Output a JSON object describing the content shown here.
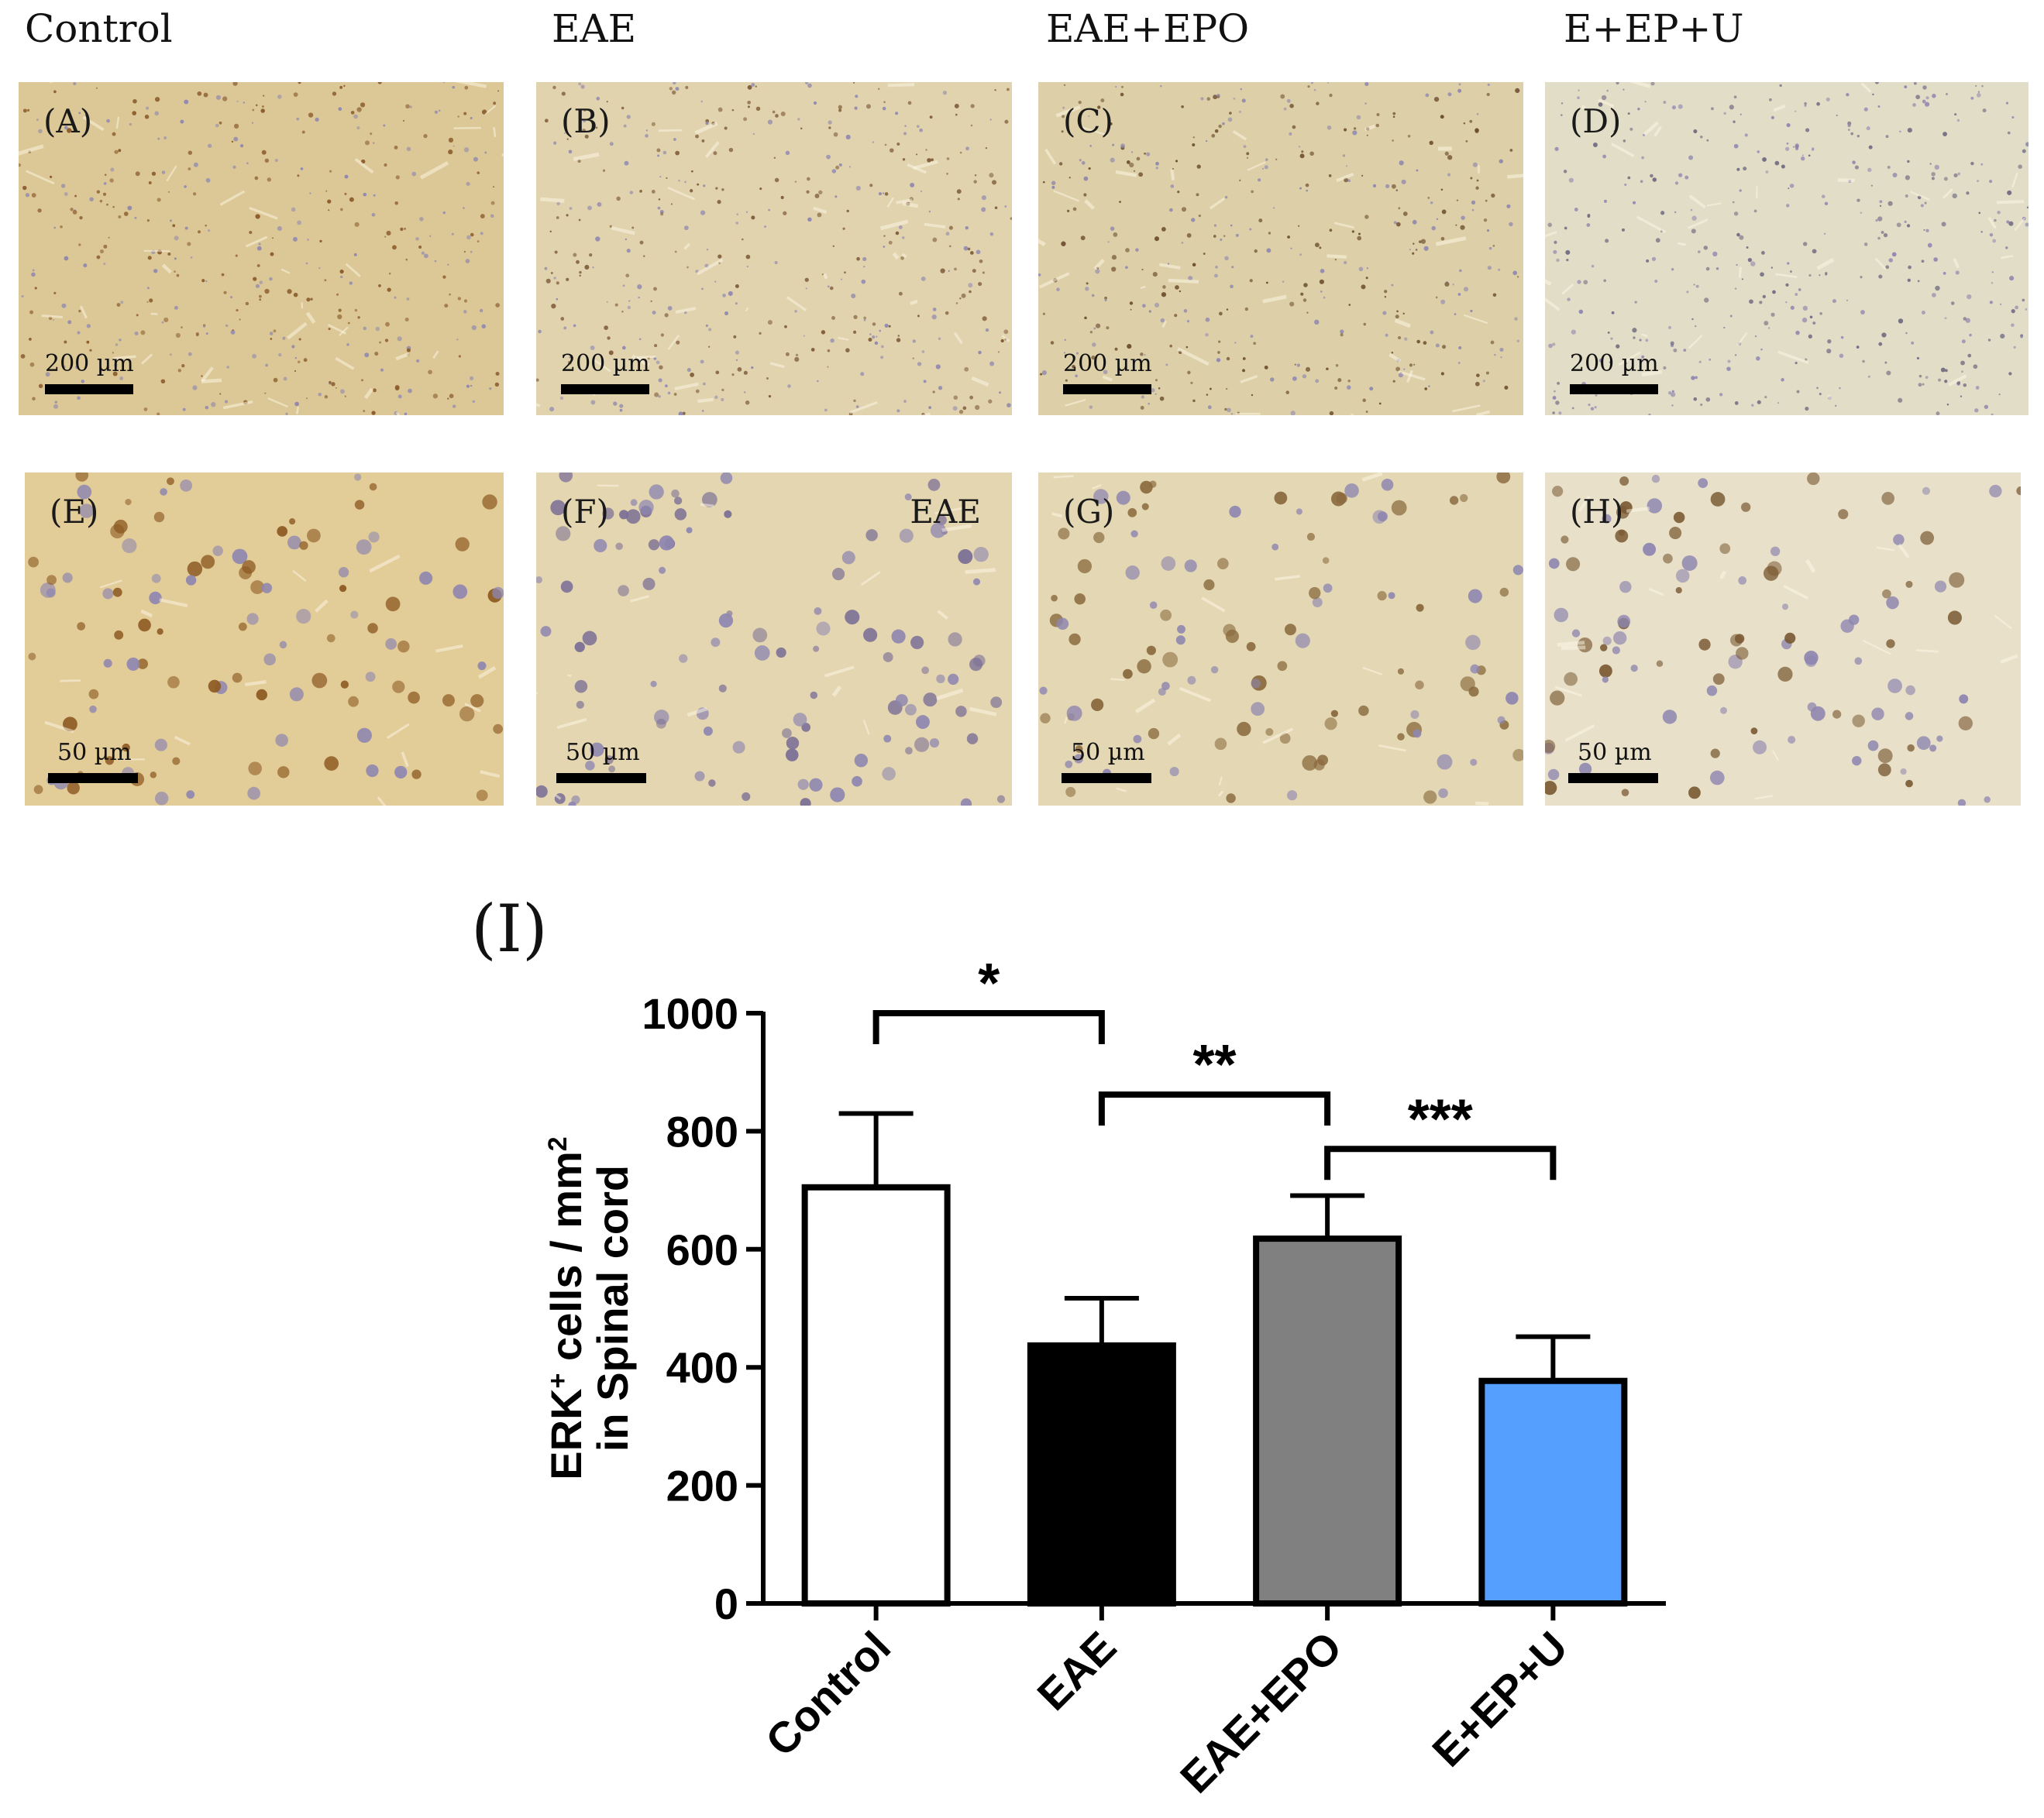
{
  "column_titles": [
    "Control",
    "EAE",
    "EAE+EPO",
    "E+EP+U"
  ],
  "panels": [
    {
      "label": "(A)",
      "scale": "200 µm",
      "tint": "#dcc896",
      "speck": "#8a5a2a"
    },
    {
      "label": "(B)",
      "scale": "200 µm",
      "tint": "#e0d3ae",
      "speck": "#7d5a36"
    },
    {
      "label": "(C)",
      "scale": "200 µm",
      "tint": "#ddd0a8",
      "speck": "#6a4a2e"
    },
    {
      "label": "(D)",
      "scale": "200 µm",
      "tint": "#e2ddc6",
      "speck": "#6f6a82"
    },
    {
      "label": "(E)",
      "scale": "50 µm",
      "tint": "#e2cc98",
      "speck": "#8d5a22"
    },
    {
      "label": "(F)",
      "scale": "50 µm",
      "tint": "#e4d6b0",
      "speck": "#7b6f96",
      "inset": "EAE"
    },
    {
      "label": "(G)",
      "scale": "50 µm",
      "tint": "#e4d8b4",
      "speck": "#8a6a3e"
    },
    {
      "label": "(H)",
      "scale": "50 µm",
      "tint": "#e8e0c8",
      "speck": "#7a5a34"
    }
  ],
  "chart_label": "(I)",
  "chart_data": {
    "type": "bar",
    "categories": [
      "Control",
      "EAE",
      "EAE+EPO",
      "E+EP+U"
    ],
    "values": [
      705,
      437,
      618,
      377
    ],
    "errors": [
      125,
      80,
      73,
      75
    ],
    "colors": [
      "#ffffff",
      "#000000",
      "#808080",
      "#55a0ff"
    ],
    "ylabel_line1": "ERK",
    "ylabel_sup1": "+",
    "ylabel_mid": " cells / mm",
    "ylabel_sup2": "2",
    "ylabel_line2": "in Spinal cord",
    "ylim": [
      0,
      1000
    ],
    "yticks": [
      0,
      200,
      400,
      600,
      800,
      1000
    ],
    "significance": [
      {
        "from": 0,
        "to": 1,
        "level": 1000,
        "label": "*"
      },
      {
        "from": 1,
        "to": 2,
        "level": 862,
        "label": "**"
      },
      {
        "from": 2,
        "to": 3,
        "level": 770,
        "label": "***"
      }
    ]
  }
}
